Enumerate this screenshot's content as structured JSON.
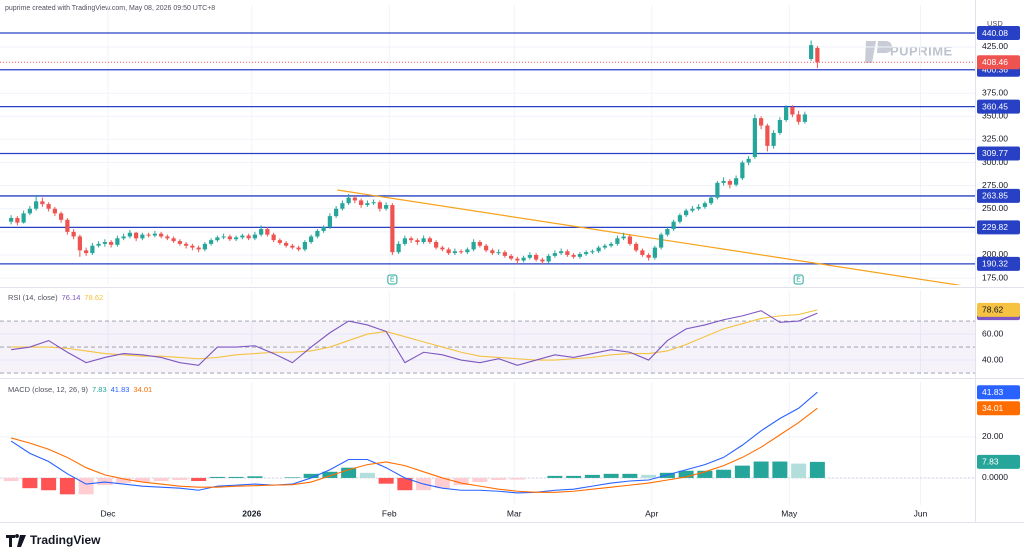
{
  "header": {
    "text": "puprime created with TradingView.com, May 08, 2026 09:50 UTC+8"
  },
  "watermark": "PUPRIME",
  "footer": {
    "logo": "TradingView"
  },
  "chart_data": [
    {
      "type": "candlestick",
      "currency": "USD",
      "xlim": [
        -1.78,
        154.22
      ],
      "xticks": [
        {
          "value": 15.5,
          "label": "Dec"
        },
        {
          "value": 38.5,
          "label": "2026"
        },
        {
          "value": 60.5,
          "label": "Feb"
        },
        {
          "value": 80.5,
          "label": "Mar"
        },
        {
          "value": 102.5,
          "label": "Apr"
        },
        {
          "value": 124.5,
          "label": "May"
        },
        {
          "value": 145.5,
          "label": "Jun"
        }
      ],
      "ylim": [
        167.5,
        470.4
      ],
      "yticks": [
        {
          "value": 175,
          "label": "175.00"
        },
        {
          "value": 200,
          "label": "200.00"
        },
        {
          "value": 225,
          "label": "225.00"
        },
        {
          "value": 250,
          "label": "250.00"
        },
        {
          "value": 275,
          "label": "275.00"
        },
        {
          "value": 300,
          "label": "300.00"
        },
        {
          "value": 325,
          "label": "325.00"
        },
        {
          "value": 350,
          "label": "350.00"
        },
        {
          "value": 375,
          "label": "375.00"
        },
        {
          "value": 400,
          "label": "400.00"
        },
        {
          "value": 425,
          "label": "425.00"
        }
      ],
      "up_color": "#26a69a",
      "down_color": "#ef5350",
      "candles": [
        [
          236,
          243,
          233,
          240
        ],
        [
          240,
          242,
          232,
          235
        ],
        [
          235,
          248,
          234,
          245
        ],
        [
          245,
          253,
          243,
          250
        ],
        [
          250,
          265,
          248,
          258
        ],
        [
          258,
          262,
          252,
          255
        ],
        [
          255,
          257,
          247,
          250
        ],
        [
          250,
          252,
          242,
          245
        ],
        [
          245,
          247,
          235,
          238
        ],
        [
          238,
          240,
          222,
          225
        ],
        [
          225,
          228,
          217,
          220
        ],
        [
          220,
          222,
          198,
          205
        ],
        [
          205,
          208,
          199,
          202
        ],
        [
          202,
          213,
          200,
          210
        ],
        [
          210,
          215,
          208,
          212
        ],
        [
          212,
          217,
          209,
          214
        ],
        [
          214,
          216,
          208,
          211
        ],
        [
          211,
          221,
          209,
          218
        ],
        [
          218,
          223,
          216,
          220
        ],
        [
          220,
          227,
          218,
          224
        ],
        [
          224,
          225,
          215,
          218
        ],
        [
          218,
          224,
          216,
          222
        ],
        [
          222,
          224,
          219,
          221
        ],
        [
          221,
          226,
          219,
          223
        ],
        [
          223,
          225,
          218,
          220
        ],
        [
          220,
          222,
          216,
          218
        ],
        [
          218,
          220,
          213,
          215
        ],
        [
          215,
          217,
          210,
          212
        ],
        [
          212,
          214,
          207,
          210
        ],
        [
          210,
          212,
          205,
          208
        ],
        [
          208,
          210,
          203,
          206
        ],
        [
          206,
          214,
          204,
          212
        ],
        [
          212,
          218,
          210,
          216
        ],
        [
          216,
          221,
          214,
          219
        ],
        [
          219,
          223,
          217,
          220
        ],
        [
          220,
          222,
          215,
          217
        ],
        [
          217,
          221,
          215,
          219
        ],
        [
          219,
          223,
          217,
          221
        ],
        [
          221,
          223,
          216,
          218
        ],
        [
          218,
          225,
          216,
          222
        ],
        [
          222,
          232,
          220,
          228
        ],
        [
          228,
          230,
          220,
          222
        ],
        [
          222,
          224,
          214,
          216
        ],
        [
          216,
          218,
          211,
          213
        ],
        [
          213,
          215,
          208,
          210
        ],
        [
          210,
          212,
          206,
          208
        ],
        [
          208,
          210,
          204,
          206
        ],
        [
          206,
          216,
          204,
          214
        ],
        [
          214,
          222,
          212,
          220
        ],
        [
          220,
          228,
          218,
          226
        ],
        [
          226,
          232,
          224,
          230
        ],
        [
          230,
          245,
          228,
          242
        ],
        [
          242,
          253,
          240,
          250
        ],
        [
          250,
          259,
          248,
          256
        ],
        [
          256,
          266,
          254,
          262
        ],
        [
          262,
          264,
          256,
          259
        ],
        [
          259,
          261,
          251,
          254
        ],
        [
          254,
          259,
          252,
          256
        ],
        [
          256,
          260,
          254,
          257
        ],
        [
          257,
          259,
          247,
          250
        ],
        [
          250,
          257,
          248,
          254
        ],
        [
          254,
          256,
          200,
          203
        ],
        [
          203,
          215,
          201,
          212
        ],
        [
          212,
          221,
          210,
          218
        ],
        [
          218,
          220,
          213,
          216
        ],
        [
          216,
          218,
          211,
          214
        ],
        [
          214,
          221,
          212,
          218
        ],
        [
          218,
          220,
          212,
          214
        ],
        [
          214,
          216,
          206,
          208
        ],
        [
          208,
          210,
          204,
          206
        ],
        [
          206,
          208,
          200,
          202
        ],
        [
          202,
          207,
          200,
          204
        ],
        [
          204,
          206,
          201,
          203
        ],
        [
          203,
          208,
          201,
          206
        ],
        [
          206,
          217,
          204,
          214
        ],
        [
          214,
          216,
          208,
          210
        ],
        [
          210,
          212,
          203,
          205
        ],
        [
          205,
          207,
          200,
          202
        ],
        [
          202,
          206,
          200,
          203
        ],
        [
          203,
          205,
          197,
          199
        ],
        [
          199,
          201,
          194,
          196
        ],
        [
          196,
          198,
          190,
          194
        ],
        [
          194,
          199,
          192,
          197
        ],
        [
          197,
          203,
          195,
          200
        ],
        [
          200,
          202,
          193,
          195
        ],
        [
          195,
          197,
          190,
          193
        ],
        [
          193,
          201,
          191,
          199
        ],
        [
          199,
          205,
          197,
          202
        ],
        [
          202,
          207,
          200,
          204
        ],
        [
          204,
          206,
          198,
          200
        ],
        [
          200,
          202,
          196,
          198
        ],
        [
          198,
          203,
          196,
          201
        ],
        [
          201,
          205,
          199,
          203
        ],
        [
          203,
          206,
          201,
          204
        ],
        [
          204,
          210,
          202,
          208
        ],
        [
          208,
          212,
          206,
          210
        ],
        [
          210,
          214,
          208,
          212
        ],
        [
          212,
          221,
          210,
          218
        ],
        [
          218,
          224,
          216,
          220
        ],
        [
          220,
          222,
          210,
          212
        ],
        [
          212,
          214,
          203,
          205
        ],
        [
          205,
          207,
          198,
          200
        ],
        [
          200,
          202,
          194,
          197
        ],
        [
          197,
          210,
          195,
          208
        ],
        [
          208,
          224,
          206,
          222
        ],
        [
          222,
          230,
          220,
          228
        ],
        [
          228,
          238,
          226,
          236
        ],
        [
          236,
          245,
          234,
          243
        ],
        [
          243,
          250,
          241,
          248
        ],
        [
          248,
          253,
          246,
          250
        ],
        [
          250,
          255,
          248,
          252
        ],
        [
          252,
          258,
          250,
          256
        ],
        [
          256,
          264,
          254,
          262
        ],
        [
          262,
          280,
          260,
          278
        ],
        [
          278,
          284,
          275,
          280
        ],
        [
          280,
          282,
          272,
          276
        ],
        [
          276,
          286,
          274,
          283
        ],
        [
          283,
          302,
          281,
          300
        ],
        [
          300,
          307,
          297,
          304
        ],
        [
          306,
          352,
          304,
          348
        ],
        [
          348,
          350,
          336,
          340
        ],
        [
          340,
          342,
          312,
          318
        ],
        [
          318,
          335,
          315,
          332
        ],
        [
          332,
          349,
          330,
          346
        ],
        [
          346,
          362,
          344,
          360
        ],
        [
          360,
          362,
          349,
          352
        ],
        [
          352,
          356,
          341,
          344
        ],
        [
          344,
          355,
          342,
          352
        ],
        [
          412,
          432,
          410,
          427
        ],
        [
          424,
          426,
          402,
          408.46
        ]
      ],
      "levels": {
        "values": [
          440.08,
          400.36,
          360.45,
          309.77,
          263.85,
          229.82,
          190.32
        ],
        "color": "#2740c4"
      },
      "trendline": {
        "x": [
          52.2,
          153.5
        ],
        "y": [
          270.3,
          165.4
        ],
        "color": "#f7a21b"
      },
      "events": [
        {
          "x": 61,
          "label": "E"
        },
        {
          "x": 126,
          "label": "E"
        }
      ]
    },
    {
      "type": "line",
      "legend": "RSI (14, close)",
      "xlim": [
        -1.78,
        154.22
      ],
      "ylim": [
        28.5,
        93.9
      ],
      "yticks": [
        {
          "value": 40,
          "label": "40.00"
        },
        {
          "value": 60,
          "label": "60.00"
        }
      ],
      "bands": [
        70,
        50,
        30
      ],
      "band_color": "#7e57c2",
      "x": [
        0,
        3,
        6,
        9,
        12,
        15,
        18,
        21,
        24,
        27,
        30,
        33,
        36,
        39,
        42,
        45,
        48,
        51,
        54,
        57,
        60,
        63,
        66,
        69,
        72,
        75,
        78,
        81,
        84,
        87,
        90,
        93,
        96,
        99,
        102,
        105,
        108,
        111,
        114,
        117,
        120,
        123,
        126,
        129
      ],
      "series": [
        {
          "color": "#7e57c2",
          "values": [
            48,
            50,
            55,
            46,
            38,
            42,
            45,
            44,
            42,
            38,
            36,
            50,
            50,
            51,
            45,
            38,
            50,
            61,
            70,
            67,
            62,
            38,
            46,
            44,
            40,
            38,
            41,
            36,
            40,
            44,
            42,
            45,
            48,
            46,
            40,
            55,
            64,
            67,
            71,
            74,
            78,
            69,
            70,
            76.14
          ]
        },
        {
          "color": "#f5c242",
          "values": [
            50,
            50,
            50,
            49,
            47,
            45,
            44,
            43,
            43,
            42,
            41,
            42,
            44,
            45,
            46,
            46,
            47,
            50,
            55,
            60,
            62,
            58,
            54,
            50,
            46,
            43,
            42,
            41,
            40,
            40,
            41,
            42,
            44,
            45,
            45,
            47,
            52,
            58,
            64,
            68,
            72,
            74,
            75,
            78.62
          ]
        }
      ]
    },
    {
      "type": "macd",
      "legend": "MACD (close, 12, 26, 9)",
      "xlim": [
        -1.78,
        154.22
      ],
      "ylim": [
        -13.2,
        46.8
      ],
      "yticks": [
        {
          "value": 0,
          "label": "0.0000"
        },
        {
          "value": 20,
          "label": "20.00"
        }
      ],
      "x": [
        0,
        3,
        6,
        9,
        12,
        15,
        18,
        21,
        24,
        27,
        30,
        33,
        36,
        39,
        42,
        45,
        48,
        51,
        54,
        57,
        60,
        63,
        66,
        69,
        72,
        75,
        78,
        81,
        84,
        87,
        90,
        93,
        96,
        99,
        102,
        105,
        108,
        111,
        114,
        117,
        120,
        123,
        126,
        129
      ],
      "histogram": {
        "values": [
          -1.5,
          -5,
          -6,
          -8,
          -8,
          -3.5,
          -2.5,
          -2,
          -1.5,
          -1,
          -1.5,
          0.5,
          0.5,
          0.8,
          0,
          0.3,
          2,
          3,
          5,
          2.5,
          -2.8,
          -6,
          -6,
          -5,
          -3.5,
          -2,
          -1,
          -0.8,
          0,
          1,
          1,
          1.5,
          2,
          2,
          1.5,
          2.5,
          3.5,
          3.5,
          4,
          6,
          8,
          8,
          7,
          7.83
        ],
        "colors": {
          "pos_rising": "#26a69a",
          "pos_falling": "#b2dfdb",
          "neg_falling": "#ff5252",
          "neg_rising": "#ffcdd2"
        }
      },
      "series": [
        {
          "color": "#2962ff",
          "values": [
            18,
            12,
            8,
            2,
            -3,
            -2,
            -3,
            -4,
            -4.5,
            -5,
            -6,
            -4,
            -3.5,
            -3,
            -3.5,
            -3,
            0,
            4,
            9,
            9,
            5,
            0,
            -3,
            -5,
            -6,
            -6,
            -6.5,
            -7.3,
            -7,
            -6,
            -5.5,
            -4,
            -2.5,
            -1.5,
            -1,
            1.5,
            4,
            6.5,
            10,
            16,
            23,
            29,
            34,
            41.83
          ]
        },
        {
          "color": "#ff6d00",
          "values": [
            19.5,
            17,
            14,
            10,
            5,
            1.5,
            -0.5,
            -2,
            -3,
            -4,
            -4.5,
            -4.5,
            -4,
            -3.8,
            -3.5,
            -3.3,
            -2,
            1,
            4,
            6.5,
            7.8,
            6,
            3,
            0,
            -2.5,
            -4,
            -5.5,
            -6.5,
            -7,
            -7,
            -6.5,
            -5.5,
            -4.5,
            -3.5,
            -2.5,
            -1,
            0.5,
            3,
            6,
            10,
            15,
            21,
            27,
            34.01
          ]
        }
      ]
    }
  ]
}
